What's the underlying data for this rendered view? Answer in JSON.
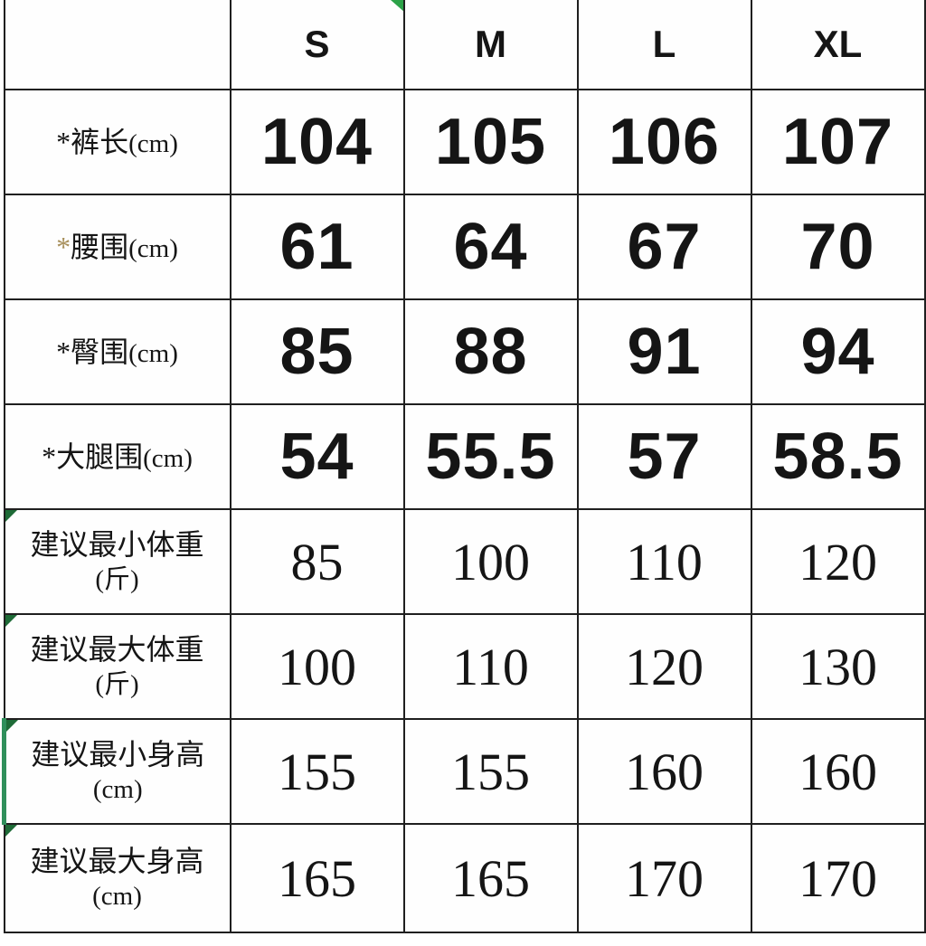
{
  "chart_data": {
    "type": "table",
    "title": "",
    "corner_label": "",
    "columns": [
      "S",
      "M",
      "L",
      "XL"
    ],
    "rows": [
      {
        "prefix": "*",
        "label": "裤长",
        "unit": "(cm)",
        "values": [
          "104",
          "105",
          "106",
          "107"
        ]
      },
      {
        "prefix": "*",
        "label": "腰围",
        "unit": "(cm)",
        "values": [
          "61",
          "64",
          "67",
          "70"
        ]
      },
      {
        "prefix": "*",
        "label": "臀围",
        "unit": "(cm)",
        "values": [
          "85",
          "88",
          "91",
          "94"
        ]
      },
      {
        "prefix": "*",
        "label": "大腿围",
        "unit": "(cm)",
        "values": [
          "54",
          "55.5",
          "57",
          "58.5"
        ]
      },
      {
        "prefix": "",
        "label": "建议最小体重",
        "unit": "(斤)",
        "values": [
          "85",
          "100",
          "110",
          "120"
        ]
      },
      {
        "prefix": "",
        "label": "建议最大体重",
        "unit": "(斤)",
        "values": [
          "100",
          "110",
          "120",
          "130"
        ]
      },
      {
        "prefix": "",
        "label": "建议最小身高",
        "unit": "(cm)",
        "values": [
          "155",
          "155",
          "160",
          "160"
        ]
      },
      {
        "prefix": "",
        "label": "建议最大身高",
        "unit": "(cm)",
        "values": [
          "165",
          "165",
          "170",
          "170"
        ]
      }
    ],
    "colors": {
      "gold_asterisk": "#a8905c",
      "green_corner_marker": "#1e6b37",
      "green_flag": "#2ca248",
      "green_row_left_border": "#2f8f5b",
      "grid_border": "#1f1f1f",
      "text": "#151515",
      "background": "#ffffff"
    }
  }
}
